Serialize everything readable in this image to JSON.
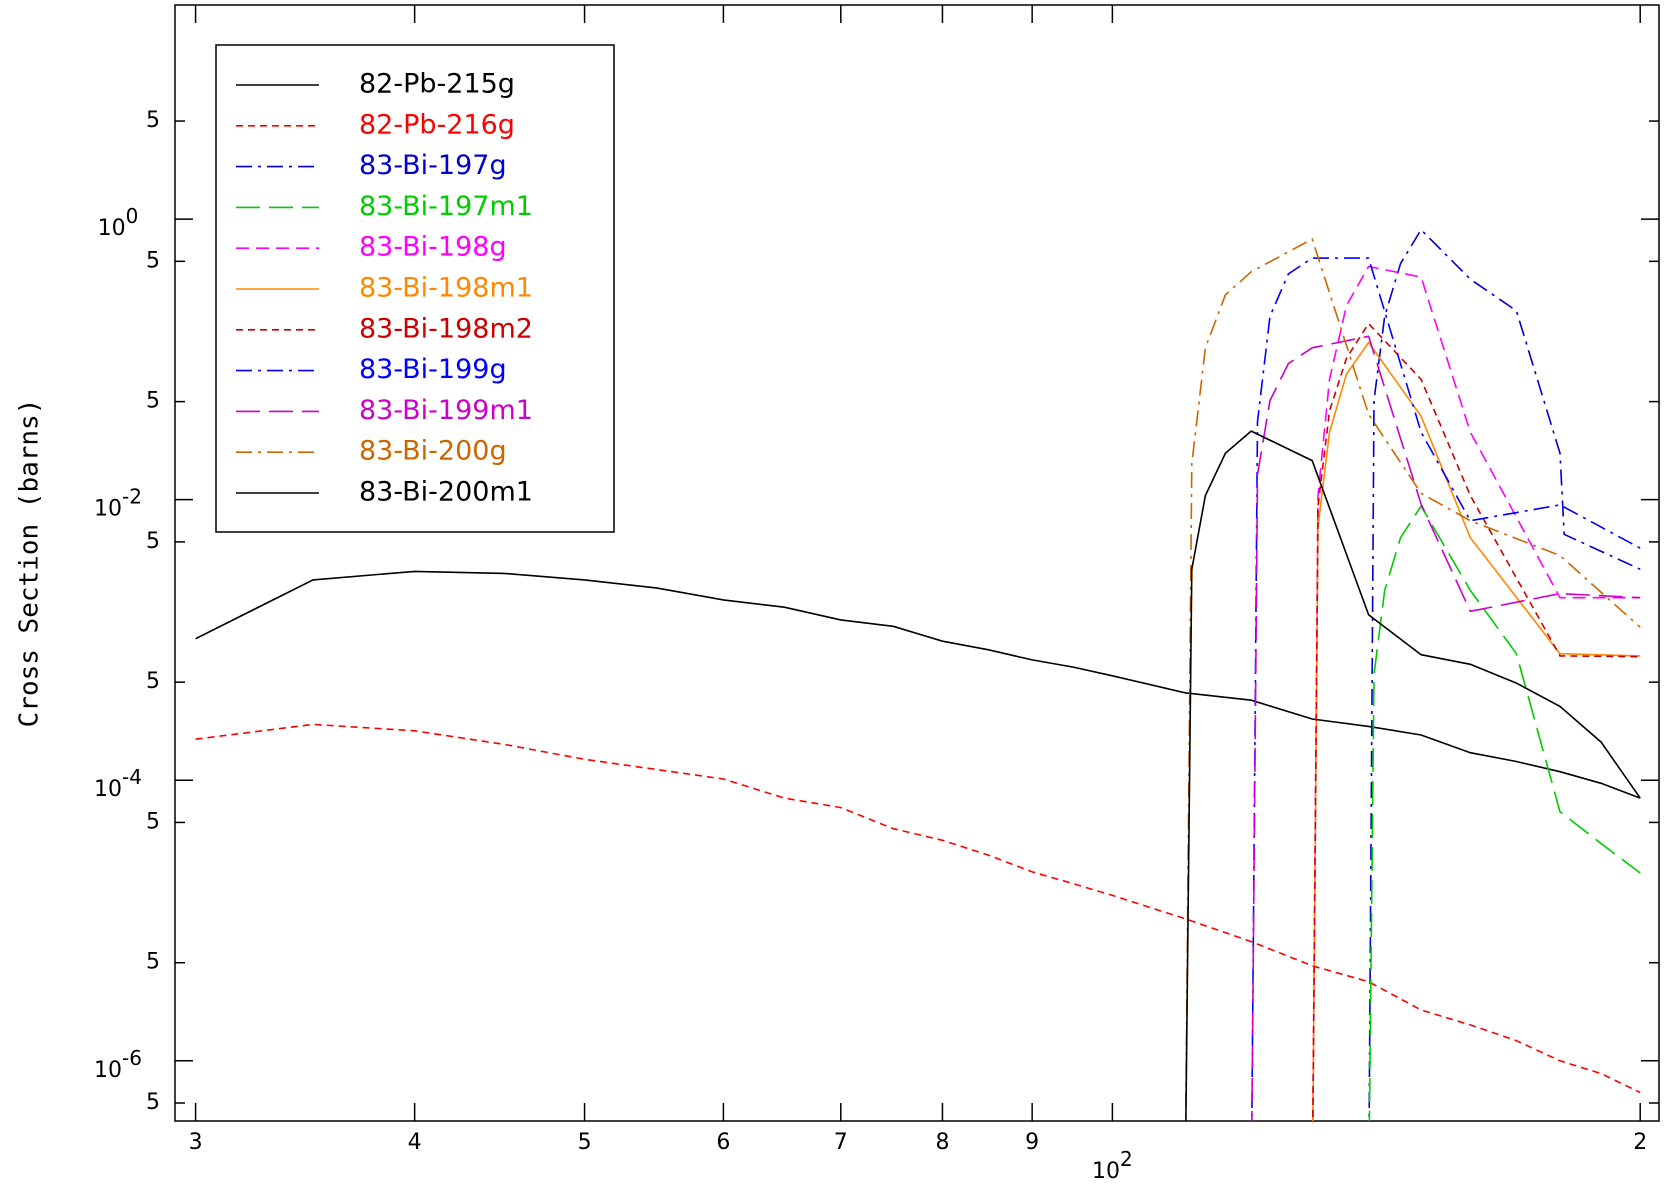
{
  "chart_data": {
    "type": "line",
    "y_label": "Cross Section (barns)",
    "log_x": true,
    "log_y": true,
    "xlim": [
      29.2,
      205
    ],
    "ylim": [
      3.72e-07,
      33.6
    ],
    "xticks": [
      {
        "value": 30,
        "label": "3"
      },
      {
        "value": 40,
        "label": "4"
      },
      {
        "value": 50,
        "label": "5"
      },
      {
        "value": 60,
        "label": "6"
      },
      {
        "value": 70,
        "label": "7"
      },
      {
        "value": 80,
        "label": "8"
      },
      {
        "value": 90,
        "label": "9"
      },
      {
        "value": 100,
        "label": "10",
        "exponent": "2"
      },
      {
        "value": 200,
        "label": "2"
      }
    ],
    "yticks": [
      {
        "value": 5,
        "label": "5"
      },
      {
        "value": 1,
        "label": "10",
        "exponent": "0"
      },
      {
        "value": 0.5,
        "label": "5"
      },
      {
        "value": 0.05,
        "label": "5"
      },
      {
        "value": 0.01,
        "label": "10",
        "exponent": "-2"
      },
      {
        "value": 0.005,
        "label": "5"
      },
      {
        "value": 0.0005,
        "label": "5"
      },
      {
        "value": 0.0001,
        "label": "10",
        "exponent": "-4"
      },
      {
        "value": 5e-05,
        "label": "5"
      },
      {
        "value": 5e-06,
        "label": "5"
      },
      {
        "value": 1e-06,
        "label": "10",
        "exponent": "-6"
      },
      {
        "value": 5e-07,
        "label": "5"
      }
    ],
    "legend": "upper left",
    "series": [
      {
        "name": "82-Pb-215g",
        "color": "#000000",
        "dash": "none",
        "x": [
          30,
          35,
          40,
          45,
          50,
          55,
          60,
          65,
          70,
          75,
          80,
          85,
          90,
          95,
          100,
          110,
          120,
          130,
          140,
          150,
          160,
          170,
          180,
          190,
          200
        ],
        "values": [
          0.00102,
          0.00268,
          0.00308,
          0.00298,
          0.00268,
          0.00234,
          0.00193,
          0.00171,
          0.00139,
          0.00125,
          0.00098,
          0.00085,
          0.00072,
          0.00064,
          0.000555,
          0.00042,
          0.000372,
          0.000273,
          0.000242,
          0.00021,
          0.000157,
          0.000136,
          0.000115,
          9.5e-05,
          7.45e-05
        ]
      },
      {
        "name": "82-Pb-216g",
        "color": "#ff0000",
        "dash": "7,5",
        "x": [
          30,
          35,
          40,
          45,
          50,
          55,
          60,
          65,
          70,
          75,
          80,
          85,
          90,
          95,
          100,
          110,
          120,
          130,
          140,
          150,
          160,
          170,
          180,
          190,
          200
        ],
        "values": [
          0.000196,
          0.00025,
          0.000225,
          0.00018,
          0.000141,
          0.000119,
          0.000102,
          7.45e-05,
          6.38e-05,
          4.51e-05,
          3.73e-05,
          2.92e-05,
          2.22e-05,
          1.83e-05,
          1.51e-05,
          1.03e-05,
          7.07e-06,
          4.75e-06,
          3.66e-06,
          2.3e-06,
          1.8e-06,
          1.39e-06,
          1e-06,
          8.1e-07,
          5.94e-07
        ]
      },
      {
        "name": "83-Bi-197g",
        "color": "#0000cc",
        "dash": "16,6,3,6",
        "x": [
          140,
          141,
          143,
          146,
          150,
          160,
          170,
          180,
          181,
          200
        ],
        "values": [
          1e-07,
          0.0509,
          0.203,
          0.483,
          0.841,
          0.373,
          0.222,
          0.0214,
          0.00565,
          0.00319
        ]
      },
      {
        "name": "83-Bi-197m1",
        "color": "#00cc00",
        "dash": "24,9",
        "x": [
          140,
          141,
          143,
          146,
          150,
          160,
          170,
          180,
          190,
          200
        ],
        "values": [
          1e-07,
          0.000565,
          0.00226,
          0.00536,
          0.009,
          0.00226,
          0.000798,
          5.95e-05,
          3.54e-05,
          2.18e-05
        ]
      },
      {
        "name": "83-Bi-198g",
        "color": "#ff00ff",
        "dash": "13,7",
        "x": [
          130,
          131,
          133,
          136,
          140,
          150,
          160,
          180,
          200
        ],
        "values": [
          1e-07,
          0.0107,
          0.072,
          0.242,
          0.459,
          0.386,
          0.0303,
          0.002,
          0.002
        ]
      },
      {
        "name": "83-Bi-198m1",
        "color": "#ff8800",
        "dash": "none",
        "x": [
          130,
          131,
          133,
          136,
          140,
          150,
          160,
          180,
          200
        ],
        "values": [
          1e-07,
          0.00638,
          0.0303,
          0.0785,
          0.132,
          0.0393,
          0.00536,
          0.000798,
          0.00077
        ]
      },
      {
        "name": "83-Bi-198m2",
        "color": "#cc0000",
        "dash": "7,5",
        "x": [
          130,
          131,
          133,
          136,
          140,
          150,
          160,
          180,
          200
        ],
        "values": [
          1e-07,
          0.009,
          0.0428,
          0.102,
          0.18,
          0.072,
          0.0107,
          0.00077,
          0.00076
        ]
      },
      {
        "name": "83-Bi-199g",
        "color": "#0000ff",
        "dash": "16,6,3,6",
        "x": [
          120,
          121,
          123,
          126,
          130,
          140,
          150,
          160,
          180,
          200
        ],
        "values": [
          1e-07,
          0.036,
          0.203,
          0.407,
          0.527,
          0.527,
          0.0303,
          0.00708,
          0.00917,
          0.00451
        ]
      },
      {
        "name": "83-Bi-199m1",
        "color": "#cc00cc",
        "dash": "24,9",
        "x": [
          120,
          121,
          123,
          126,
          130,
          140,
          150,
          160,
          180,
          200
        ],
        "values": [
          1e-07,
          0.0151,
          0.0509,
          0.0933,
          0.121,
          0.146,
          0.0093,
          0.0016,
          0.00214,
          0.002
        ]
      },
      {
        "name": "83-Bi-200g",
        "color": "#cc6600",
        "dash": "16,6,3,6",
        "x": [
          110,
          111,
          113,
          116,
          120,
          130,
          140,
          150,
          160,
          180,
          200
        ],
        "values": [
          1e-07,
          0.018,
          0.121,
          0.288,
          0.421,
          0.72,
          0.0406,
          0.0111,
          0.00708,
          0.004,
          0.00123
        ]
      },
      {
        "name": "83-Bi-200m1",
        "color": "#000000",
        "dash": "none",
        "x": [
          110,
          111,
          113,
          116,
          120,
          130,
          140,
          150,
          160,
          170,
          180,
          190,
          200
        ],
        "values": [
          1e-07,
          0.00319,
          0.0107,
          0.0214,
          0.0308,
          0.019,
          0.00151,
          0.000785,
          0.00067,
          0.000492,
          0.000336,
          0.000187,
          7.45e-05
        ]
      }
    ]
  }
}
